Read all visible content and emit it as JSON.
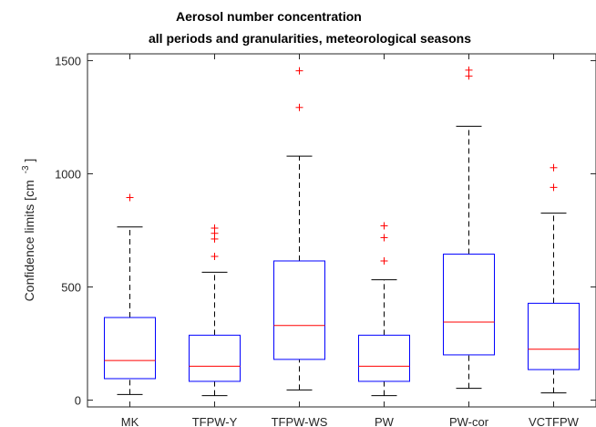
{
  "chart_data": {
    "type": "boxplot",
    "title_lines": [
      "Aerosol number concentration",
      "all periods and granularities, meteorological seasons"
    ],
    "ylabel": "Confidence limits [cm -3]",
    "ylabel_main": "Confidence limits [cm",
    "ylabel_sup": "-3",
    "ylabel_close": "]",
    "xlabel": "",
    "ylim": [
      -30,
      1530
    ],
    "yticks": [
      0,
      500,
      1000,
      1500
    ],
    "categories": [
      "MK",
      "TFPW-Y",
      "TFPW-WS",
      "PW",
      "PW-cor",
      "VCTFPW"
    ],
    "boxes": [
      {
        "category": "MK",
        "whisker_low": 25,
        "q1": 95,
        "median": 175,
        "q3": 365,
        "whisker_high": 765,
        "outliers": [
          895
        ]
      },
      {
        "category": "TFPW-Y",
        "whisker_low": 20,
        "q1": 83,
        "median": 150,
        "q3": 287,
        "whisker_high": 565,
        "outliers": [
          635,
          712,
          737,
          760
        ]
      },
      {
        "category": "TFPW-WS",
        "whisker_low": 45,
        "q1": 180,
        "median": 330,
        "q3": 615,
        "whisker_high": 1078,
        "outliers": [
          1293,
          1455
        ]
      },
      {
        "category": "PW",
        "whisker_low": 20,
        "q1": 83,
        "median": 150,
        "q3": 287,
        "whisker_high": 532,
        "outliers": [
          615,
          718,
          770
        ]
      },
      {
        "category": "PW-cor",
        "whisker_low": 52,
        "q1": 200,
        "median": 345,
        "q3": 645,
        "whisker_high": 1210,
        "outliers": [
          1432,
          1458
        ]
      },
      {
        "category": "VCTFPW",
        "whisker_low": 32,
        "q1": 135,
        "median": 225,
        "q3": 428,
        "whisker_high": 826,
        "outliers": [
          940,
          1027
        ]
      }
    ],
    "grid": false,
    "legend": "none",
    "colors": {
      "box": "#0000ff",
      "median": "#ff0000",
      "whisker": "#000000",
      "outlier": "#ff0000",
      "axes": "#262626"
    }
  }
}
